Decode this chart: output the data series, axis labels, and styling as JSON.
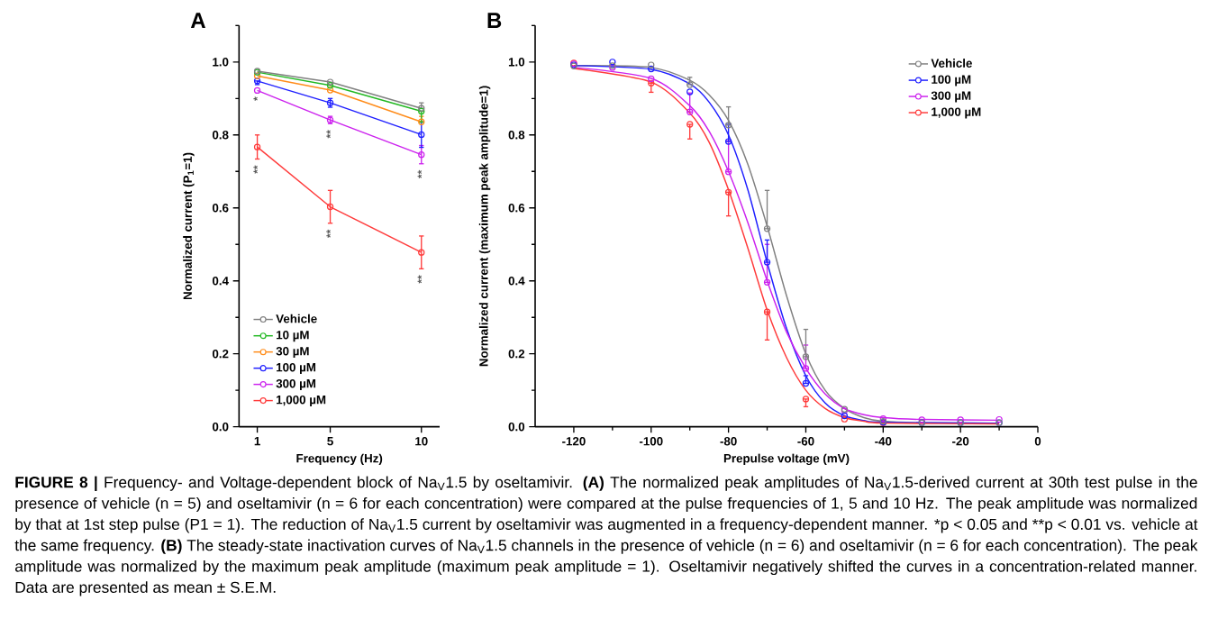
{
  "chart_data": [
    {
      "type": "line",
      "title": "A",
      "xlabel": "Frequency (Hz)",
      "ylabel": "Normalized current (P$_{1}$=1)",
      "xlim": [
        0,
        11
      ],
      "xticks": [
        1,
        5,
        10
      ],
      "ylim": [
        0,
        1.1
      ],
      "yticks": [
        {
          "value": 0,
          "label": "0.0"
        },
        {
          "value": 0.2,
          "label": "0.2"
        },
        {
          "value": 0.4,
          "label": "0.4"
        },
        {
          "value": 0.6,
          "label": "0.6"
        },
        {
          "value": 0.8,
          "label": "0.8"
        },
        {
          "value": 1.0,
          "label": "1.0"
        }
      ],
      "marker": "circle",
      "legend": "bottom left",
      "series": [
        {
          "name": "Vehicle",
          "color": "#808080",
          "x": [
            1,
            5,
            10
          ],
          "values": [
            0.975,
            0.945,
            0.873
          ],
          "errors": [
            null,
            null,
            [
              0.873,
              0.888
            ]
          ]
        },
        {
          "name": "10 µM",
          "color": "#22b822",
          "x": [
            1,
            5,
            10
          ],
          "values": [
            0.972,
            0.936,
            0.865
          ],
          "errors": [
            null,
            null,
            [
              0.835,
              0.865
            ]
          ]
        },
        {
          "name": "30 µM",
          "color": "#ff8c1a",
          "x": [
            1,
            5,
            10
          ],
          "values": [
            0.962,
            0.923,
            0.836
          ],
          "errors": [
            null,
            null,
            [
              0.836,
              0.851
            ]
          ]
        },
        {
          "name": "100 µM",
          "color": "#1f1fff",
          "x": [
            1,
            5,
            10
          ],
          "values": [
            0.948,
            0.888,
            0.801
          ],
          "errors": [
            [
              0.938,
              0.948
            ],
            [
              0.876,
              0.9
            ],
            [
              0.766,
              0.836
            ]
          ]
        },
        {
          "name": "300 µM",
          "color": "#cc22ee",
          "x": [
            1,
            5,
            10
          ],
          "values": [
            0.922,
            0.841,
            0.746
          ],
          "errors": [
            null,
            [
              0.831,
              0.851
            ],
            [
              0.721,
              0.771
            ]
          ]
        },
        {
          "name": "1,000 µM",
          "color": "#ff3b3b",
          "x": [
            1,
            5,
            10
          ],
          "values": [
            0.767,
            0.603,
            0.478
          ],
          "errors": [
            [
              0.734,
              0.8
            ],
            [
              0.558,
              0.648
            ],
            [
              0.433,
              0.523
            ]
          ]
        }
      ],
      "annotations": [
        {
          "text": "*",
          "x": 1,
          "y": 0.922
        },
        {
          "text": "**",
          "x": 5,
          "y": 0.841
        },
        {
          "text": "**",
          "x": 10,
          "y": 0.746
        },
        {
          "text": "**",
          "x": 1,
          "y": 0.767
        },
        {
          "text": "**",
          "x": 5,
          "y": 0.603
        },
        {
          "text": "**",
          "x": 10,
          "y": 0.478
        },
        "**FIGURE 8 |** Frequency- and Voltage-dependent block of Na$_{V}$1.5 by oseltamivir. **(A)** The normalized peak amplitudes of Na$_{V}$1.5-derived current at 30th test pulse in the presence of vehicle (n = 5) and oseltamivir (n = 6 for each concentration) were compared at the pulse frequencies of 1, 5 and 10 Hz. The peak amplitude was normalized by that at 1st step pulse (P1 = 1). The reduction of Na$_{V}$1.5 current by oseltamivir was augmented in a frequency-dependent manner.",
        "*p < 0.05 and **p < 0.01 vs. vehicle at the same frequency.",
        "**(B)** The steady-state inactivation curves of Na$_{V}$1.5 channels in the presence of vehicle (n = 6) and oseltamivir (n = 6 for each concentration). The peak amplitude was normalized by the maximum peak amplitude (maximum peak amplitude = 1). Oseltamivir negatively shifted the curves in a concentration-related manner. Data are presented as mean ± S.E.M."
      ]
    },
    {
      "type": "scatter",
      "title": "B",
      "xlabel": "Prepulse voltage (mV)",
      "ylabel": "Normalized current (maximum peak amplitude=1)",
      "xlim": [
        -130,
        0
      ],
      "xticks": [
        -120,
        -100,
        -80,
        -60,
        -40,
        -20,
        0
      ],
      "ylim": [
        0,
        1.1
      ],
      "yticks": [
        {
          "value": 0,
          "label": "0.0"
        },
        {
          "value": 0.2,
          "label": "0.2"
        },
        {
          "value": 0.4,
          "label": "0.4"
        },
        {
          "value": 0.6,
          "label": "0.6"
        },
        {
          "value": 0.8,
          "label": "0.8"
        },
        {
          "value": 1.0,
          "label": "1.0"
        }
      ],
      "marker": "circle",
      "legend": "top right",
      "series": [
        {
          "name": "Vehicle",
          "color": "#808080",
          "x": [
            -120,
            -110,
            -100,
            -90,
            -80,
            -70,
            -60,
            -50,
            -40,
            -30,
            -20,
            -10
          ],
          "values": [
            0.989,
            0.99,
            0.992,
            0.938,
            0.827,
            0.543,
            0.192,
            0.048,
            0.015,
            0.011,
            0.011,
            0.011
          ],
          "errors": [
            null,
            null,
            null,
            [
              0.938,
              0.958
            ],
            [
              0.827,
              0.877
            ],
            [
              0.543,
              0.648
            ],
            [
              0.192,
              0.267
            ],
            null,
            null,
            null,
            null,
            null
          ]
        },
        {
          "name": "100 µM",
          "color": "#1f1fff",
          "x": [
            -120,
            -110,
            -100,
            -90,
            -80,
            -70,
            -60,
            -50,
            -40,
            -30,
            -20,
            -10
          ],
          "values": [
            0.992,
            1.0,
            0.981,
            0.918,
            0.782,
            0.451,
            0.119,
            0.03,
            0.012,
            0.011,
            0.011,
            0.011
          ],
          "errors": [
            null,
            null,
            null,
            null,
            [
              0.782,
              0.829
            ],
            [
              0.451,
              0.512
            ],
            [
              0.119,
              0.14
            ],
            null,
            null,
            null,
            null,
            null
          ]
        },
        {
          "name": "300 µM",
          "color": "#cc22ee",
          "x": [
            -120,
            -110,
            -100,
            -90,
            -80,
            -70,
            -60,
            -50,
            -40,
            -30,
            -20,
            -10
          ],
          "values": [
            0.995,
            0.985,
            0.954,
            0.863,
            0.699,
            0.396,
            0.16,
            0.044,
            0.022,
            0.019,
            0.019,
            0.02
          ],
          "errors": [
            null,
            null,
            null,
            [
              0.863,
              0.915
            ],
            [
              0.699,
              0.784
            ],
            [
              0.396,
              0.5
            ],
            [
              0.16,
              0.224
            ],
            null,
            null,
            null,
            null,
            null
          ]
        },
        {
          "name": "1,000 µM",
          "color": "#ff3b3b",
          "x": [
            -120,
            -110,
            -100,
            -90,
            -80,
            -70,
            -60,
            -50,
            -40
          ],
          "values": [
            0.997,
            null,
            0.942,
            0.829,
            0.643,
            0.315,
            0.076,
            0.021,
            0.011
          ],
          "errors": [
            null,
            null,
            [
              0.917,
              0.942
            ],
            [
              0.789,
              0.829
            ],
            [
              0.578,
              0.643
            ],
            [
              0.238,
              0.315
            ],
            [
              0.055,
              0.076
            ],
            null,
            null
          ]
        },
        {
          "type": "line",
          "marker": "none",
          "color": "#808080",
          "x": [
            -120,
            -100,
            -90,
            -85,
            -80,
            -75,
            -70,
            -65,
            -60,
            -55,
            -50,
            -45,
            -40,
            -30,
            -10
          ],
          "values": [
            0.99,
            0.985,
            0.95,
            0.91,
            0.84,
            0.72,
            0.55,
            0.36,
            0.2,
            0.1,
            0.05,
            0.025,
            0.015,
            0.011,
            0.01
          ]
        },
        {
          "type": "line",
          "marker": "none",
          "color": "#1f1fff",
          "x": [
            -120,
            -100,
            -90,
            -85,
            -80,
            -75,
            -70,
            -65,
            -60,
            -55,
            -50,
            -45,
            -40,
            -10
          ],
          "values": [
            0.99,
            0.98,
            0.94,
            0.89,
            0.8,
            0.65,
            0.45,
            0.27,
            0.14,
            0.065,
            0.03,
            0.017,
            0.012,
            0.01
          ]
        },
        {
          "type": "line",
          "marker": "none",
          "color": "#cc22ee",
          "x": [
            -120,
            -100,
            -90,
            -85,
            -80,
            -75,
            -70,
            -65,
            -60,
            -55,
            -50,
            -45,
            -40,
            -30,
            -10
          ],
          "values": [
            0.985,
            0.955,
            0.88,
            0.81,
            0.7,
            0.56,
            0.4,
            0.26,
            0.16,
            0.09,
            0.05,
            0.033,
            0.025,
            0.02,
            0.018
          ]
        },
        {
          "type": "line",
          "marker": "none",
          "color": "#ff3b3b",
          "x": [
            -120,
            -100,
            -90,
            -85,
            -80,
            -75,
            -70,
            -65,
            -60,
            -55,
            -50,
            -45,
            -40,
            -10
          ],
          "values": [
            0.982,
            0.945,
            0.86,
            0.78,
            0.65,
            0.49,
            0.32,
            0.19,
            0.1,
            0.05,
            0.025,
            0.015,
            0.01,
            0.008
          ]
        }
      ]
    }
  ]
}
